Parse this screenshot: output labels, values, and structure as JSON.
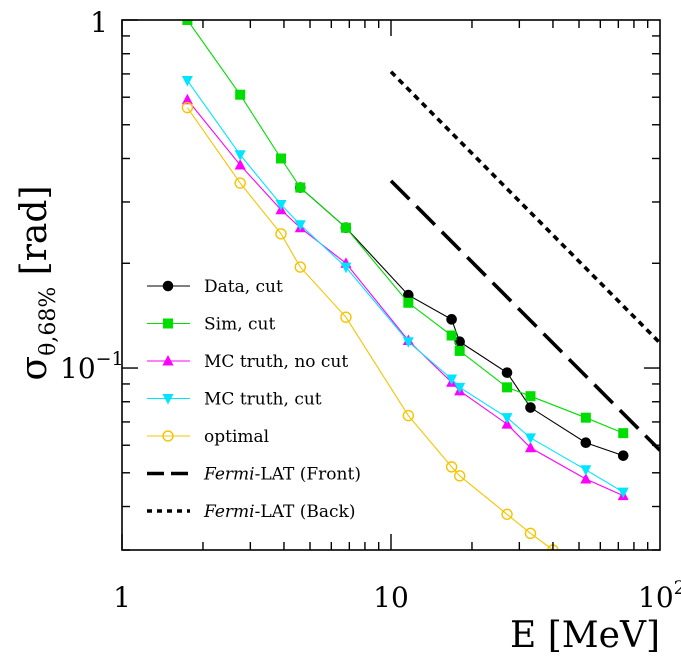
{
  "chart_data": {
    "type": "line",
    "x_scale": "log",
    "y_scale": "log",
    "xlim": [
      1,
      100
    ],
    "ylim": [
      0.03,
      1
    ],
    "xlabel": "E [MeV]",
    "ylabel_main": "σ",
    "ylabel_sub": "θ,68%",
    "ylabel_unit": " [rad]",
    "x_ticks": [
      {
        "value": 1,
        "label": "1"
      },
      {
        "value": 10,
        "label": "10"
      },
      {
        "value": 100,
        "base": "10",
        "exp": "2"
      }
    ],
    "y_ticks": [
      {
        "value": 1,
        "label": "1"
      },
      {
        "value": 0.1,
        "base": "10",
        "exp": "−1"
      }
    ],
    "series": [
      {
        "name": "Data, cut",
        "color": "#000000",
        "marker": "circle-filled",
        "line": "solid",
        "x": [
          4.6,
          6.8,
          11.6,
          16.8,
          18.0,
          27.0,
          33.0,
          53.0,
          73.0
        ],
        "y": [
          0.33,
          0.253,
          0.162,
          0.138,
          0.119,
          0.097,
          0.077,
          0.061,
          0.056
        ]
      },
      {
        "name": "Sim, cut",
        "color": "#00dd00",
        "marker": "square-filled",
        "line": "solid",
        "x": [
          1.75,
          2.75,
          3.9,
          4.6,
          6.8,
          11.6,
          16.8,
          18.0,
          27.0,
          33.0,
          53.0,
          73.0
        ],
        "y": [
          1.0,
          0.61,
          0.4,
          0.33,
          0.253,
          0.154,
          0.124,
          0.112,
          0.088,
          0.083,
          0.072,
          0.065
        ]
      },
      {
        "name": "MC truth, no cut",
        "color": "#ff00ff",
        "marker": "triangle-up",
        "line": "solid",
        "x": [
          1.75,
          2.75,
          3.9,
          4.6,
          6.8,
          11.6,
          16.8,
          18.0,
          27.0,
          33.0,
          53.0,
          73.0
        ],
        "y": [
          0.59,
          0.383,
          0.285,
          0.253,
          0.2,
          0.12,
          0.091,
          0.086,
          0.069,
          0.059,
          0.048,
          0.043
        ]
      },
      {
        "name": "MC truth, cut",
        "color": "#00e5ff",
        "marker": "triangle-down",
        "line": "solid",
        "x": [
          1.75,
          2.75,
          3.9,
          4.6,
          6.8,
          11.6,
          16.8,
          18.0,
          27.0,
          33.0,
          53.0,
          73.0
        ],
        "y": [
          0.67,
          0.41,
          0.295,
          0.258,
          0.195,
          0.119,
          0.093,
          0.088,
          0.072,
          0.063,
          0.051,
          0.044
        ]
      },
      {
        "name": "optimal",
        "color": "#f5c400",
        "marker": "circle-open",
        "line": "solid",
        "x": [
          1.75,
          2.75,
          3.9,
          4.6,
          6.8,
          11.6,
          16.8,
          18.0,
          27.0,
          33.0,
          40.0
        ],
        "y": [
          0.56,
          0.34,
          0.243,
          0.195,
          0.14,
          0.073,
          0.052,
          0.049,
          0.038,
          0.0335,
          0.03
        ]
      },
      {
        "name": "Fermi-LAT (Front)",
        "name_italic": "Fermi",
        "name_rest": "-LAT (Front)",
        "color": "#000000",
        "marker": "none",
        "line": "dashed",
        "x": [
          10,
          100
        ],
        "y": [
          0.345,
          0.058
        ]
      },
      {
        "name": "Fermi-LAT (Back)",
        "name_italic": "Fermi",
        "name_rest": "-LAT (Back)",
        "color": "#000000",
        "marker": "none",
        "line": "dotted",
        "x": [
          10,
          100
        ],
        "y": [
          0.71,
          0.118
        ]
      }
    ],
    "legend_position": "bottom-left"
  }
}
